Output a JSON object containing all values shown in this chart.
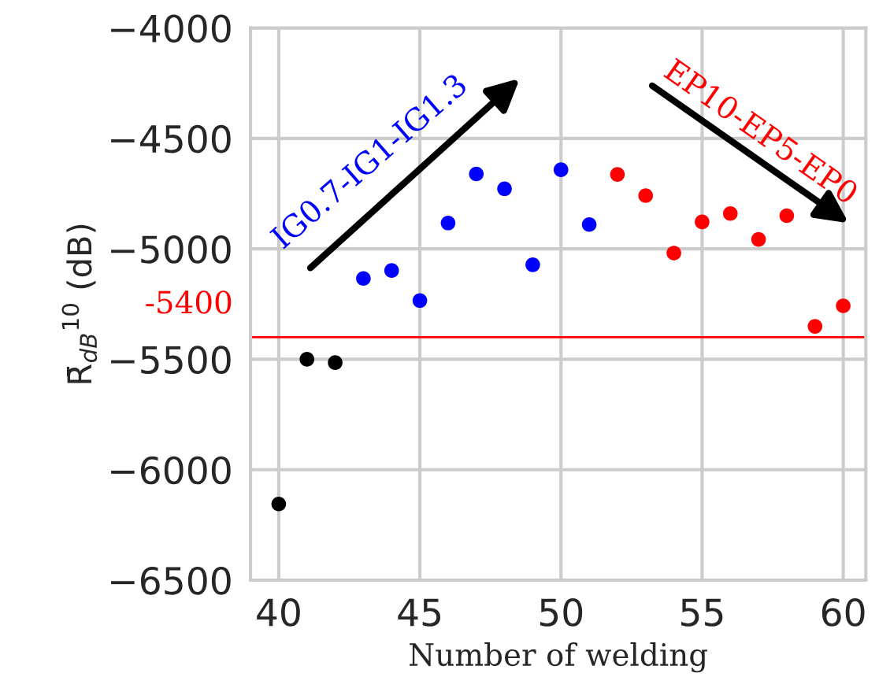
{
  "chart_data": {
    "type": "scatter",
    "xlabel": "Number of welding",
    "ylabel": "R̄$_{dB}$$^{10}$ (dB)",
    "series": [
      {
        "color": "#000000",
        "x": [
          40,
          41,
          42
        ],
        "values": [
          -6155,
          -5500,
          -5515
        ]
      },
      {
        "color": "#0000ff",
        "x": [
          43,
          44,
          45,
          46,
          47,
          48,
          49,
          50,
          51
        ],
        "values": [
          -5134,
          -5098,
          -5234,
          -4883,
          -4661,
          -4728,
          -5072,
          -4642,
          -4890
        ]
      },
      {
        "color": "#ff0000",
        "x": [
          52,
          53,
          54,
          55,
          56,
          57,
          58,
          59,
          60
        ],
        "values": [
          -4663,
          -4759,
          -5019,
          -4878,
          -4840,
          -4957,
          -4850,
          -5351,
          -5258
        ]
      }
    ],
    "xlim": [
      39,
      60.8
    ],
    "xticks": [
      40,
      45,
      50,
      55,
      60
    ],
    "ylim": [
      -6500,
      -4000
    ],
    "yticks": [
      -6500,
      -6000,
      -5500,
      -5000,
      -4500,
      -4000
    ],
    "ref_lines": [
      {
        "axis": "y",
        "value": -5400,
        "label": "-5400",
        "color": "#ff0000"
      }
    ],
    "annotations": [
      "IG0.7-IG1-IG1.3",
      "EP10-EP5-EP0"
    ],
    "grid": true,
    "marker": "circle"
  }
}
